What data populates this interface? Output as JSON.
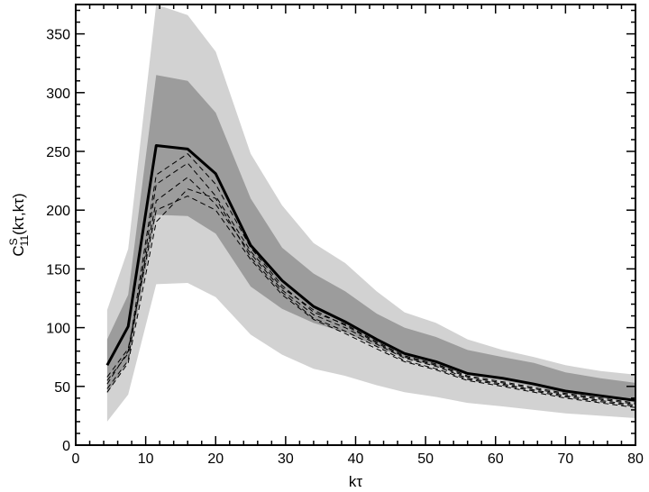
{
  "chart_data": {
    "type": "area",
    "title": "",
    "xlabel": "kτ",
    "ylabel": {
      "base": "C",
      "sup": "S",
      "sub": "11",
      "args": "(kτ,kτ)"
    },
    "xlim": [
      0,
      80
    ],
    "ylim": [
      0,
      375
    ],
    "xticks": [
      0,
      10,
      20,
      30,
      40,
      50,
      60,
      70,
      80
    ],
    "yticks": [
      0,
      50,
      100,
      150,
      200,
      250,
      300,
      350
    ],
    "grid": false,
    "legend": "none",
    "x": [
      4.5,
      7.5,
      11.5,
      16,
      20,
      25,
      29.5,
      34,
      38.5,
      43,
      47,
      51.5,
      56,
      61,
      65.5,
      70,
      75,
      80
    ],
    "outer_band": {
      "lower": [
        20,
        43,
        137,
        138,
        126,
        94,
        77,
        65,
        59,
        51,
        45,
        41,
        36,
        33,
        30,
        27,
        25,
        23
      ],
      "upper": [
        115,
        167,
        375,
        366,
        335,
        248,
        204,
        172,
        155,
        131,
        113,
        104,
        90,
        81,
        75,
        68,
        63,
        60
      ],
      "color": "#d2d2d2"
    },
    "inner_band": {
      "lower": [
        44,
        72,
        196,
        195,
        180,
        135,
        116,
        104,
        96,
        84,
        74,
        67,
        60,
        55,
        50,
        44,
        40,
        37
      ],
      "upper": [
        90,
        128,
        315,
        310,
        283,
        210,
        168,
        146,
        131,
        112,
        100,
        92,
        81,
        75,
        70,
        62,
        57,
        53
      ],
      "color": "#9c9c9c"
    },
    "series": [
      {
        "values": [
          68,
          101,
          255,
          252,
          231,
          170,
          140,
          118,
          105,
          90,
          78,
          71,
          61,
          57,
          52,
          46,
          42,
          38
        ],
        "style": "solid",
        "color": "#000000"
      },
      {
        "values": [
          55,
          78,
          230,
          248,
          222,
          168,
          136,
          113,
          103,
          88,
          76,
          69,
          59,
          54,
          49,
          44,
          40,
          36
        ],
        "style": "dashed",
        "color": "#000000"
      },
      {
        "values": [
          48,
          72,
          222,
          240,
          212,
          165,
          134,
          115,
          102,
          87,
          75,
          68,
          58,
          53,
          48,
          43,
          39,
          35
        ],
        "style": "dashed",
        "color": "#000000"
      },
      {
        "values": [
          52,
          80,
          208,
          228,
          205,
          163,
          132,
          111,
          100,
          86,
          74,
          67,
          57,
          52,
          47,
          42,
          38,
          34
        ],
        "style": "dashed",
        "color": "#000000"
      },
      {
        "values": [
          45,
          70,
          190,
          218,
          210,
          160,
          130,
          108,
          97,
          84,
          72,
          65,
          56,
          51,
          46,
          41,
          37,
          33
        ],
        "style": "dashed",
        "color": "#000000"
      },
      {
        "values": [
          58,
          82,
          200,
          212,
          200,
          158,
          128,
          107,
          95,
          82,
          71,
          64,
          55,
          50,
          45,
          40,
          36,
          32
        ],
        "style": "dashed",
        "color": "#000000"
      }
    ]
  }
}
